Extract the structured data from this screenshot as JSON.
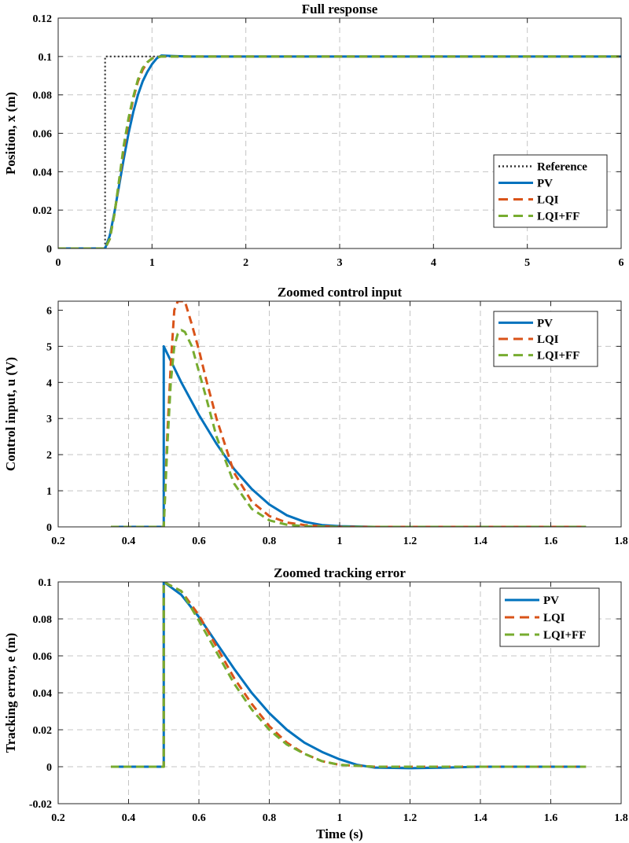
{
  "chart_data": [
    {
      "type": "line",
      "title": "Full response",
      "xlabel": "",
      "ylabel": "Position, x (m)",
      "xlim": [
        0,
        6
      ],
      "ylim": [
        0,
        0.12
      ],
      "xticks": [
        0,
        1,
        2,
        3,
        4,
        5,
        6
      ],
      "xtick_labels": [
        "0",
        "1",
        "2",
        "3",
        "4",
        "5",
        "6"
      ],
      "yticks": [
        0,
        0.02,
        0.04,
        0.06,
        0.08,
        0.1,
        0.12
      ],
      "ytick_labels": [
        "0",
        "0.02",
        "0.04",
        "0.06",
        "0.08",
        "0.1",
        "0.12"
      ],
      "grid": true,
      "legend": "right-middle",
      "series": [
        {
          "name": "Reference",
          "color": "#333333",
          "style": "dotted",
          "x": [
            0,
            0.5,
            0.5,
            6
          ],
          "y": [
            0,
            0,
            0.1,
            0.1
          ]
        },
        {
          "name": "PV",
          "color": "#0072BD",
          "style": "solid",
          "x": [
            0,
            0.5,
            0.55,
            0.6,
            0.65,
            0.7,
            0.75,
            0.8,
            0.85,
            0.9,
            0.95,
            1.0,
            1.05,
            1.1,
            1.2,
            1.4,
            6
          ],
          "y": [
            0,
            0,
            0.0067,
            0.019,
            0.033,
            0.047,
            0.06,
            0.071,
            0.08,
            0.087,
            0.092,
            0.096,
            0.099,
            0.1005,
            0.1003,
            0.1,
            0.1
          ]
        },
        {
          "name": "LQI",
          "color": "#D95319",
          "style": "dashed",
          "x": [
            0,
            0.5,
            0.55,
            0.6,
            0.65,
            0.7,
            0.75,
            0.8,
            0.85,
            0.9,
            0.95,
            1.0,
            1.1,
            1.2,
            6
          ],
          "y": [
            0,
            0,
            0.005,
            0.018,
            0.035,
            0.052,
            0.066,
            0.078,
            0.087,
            0.093,
            0.097,
            0.099,
            0.1,
            0.1,
            0.1
          ]
        },
        {
          "name": "LQI+FF",
          "color": "#77AC30",
          "style": "dashed",
          "x": [
            0,
            0.5,
            0.55,
            0.6,
            0.65,
            0.7,
            0.75,
            0.8,
            0.85,
            0.9,
            0.95,
            1.0,
            1.1,
            1.2,
            6
          ],
          "y": [
            0,
            0,
            0.005,
            0.018,
            0.036,
            0.054,
            0.068,
            0.079,
            0.088,
            0.094,
            0.097,
            0.099,
            0.1,
            0.1,
            0.1
          ]
        }
      ]
    },
    {
      "type": "line",
      "title": "Zoomed control input",
      "xlabel": "",
      "ylabel": "Control input, u (V)",
      "xlim": [
        0.2,
        1.8
      ],
      "ylim": [
        0,
        6.25
      ],
      "xticks": [
        0.2,
        0.4,
        0.6,
        0.8,
        1.0,
        1.2,
        1.4,
        1.6,
        1.8
      ],
      "xtick_labels": [
        "0.2",
        "0.4",
        "0.6",
        "0.8",
        "1",
        "1.2",
        "1.4",
        "1.6",
        "1.8"
      ],
      "yticks": [
        0,
        1,
        2,
        3,
        4,
        5,
        6
      ],
      "ytick_labels": [
        "0",
        "1",
        "2",
        "3",
        "4",
        "5",
        "6"
      ],
      "grid": true,
      "legend": "top-right",
      "series": [
        {
          "name": "PV",
          "color": "#0072BD",
          "style": "solid",
          "x": [
            0.35,
            0.5,
            0.5,
            0.55,
            0.6,
            0.65,
            0.7,
            0.75,
            0.8,
            0.85,
            0.9,
            0.95,
            1.0,
            1.1,
            1.7
          ],
          "y": [
            0,
            0,
            5.0,
            4.0,
            3.1,
            2.3,
            1.6,
            1.05,
            0.62,
            0.32,
            0.14,
            0.05,
            0.02,
            0,
            0
          ]
        },
        {
          "name": "LQI",
          "color": "#D95319",
          "style": "dashed",
          "x": [
            0.35,
            0.5,
            0.51,
            0.52,
            0.53,
            0.54,
            0.55,
            0.56,
            0.58,
            0.6,
            0.62,
            0.65,
            0.7,
            0.75,
            0.8,
            0.85,
            0.9,
            0.95,
            1.0,
            1.7
          ],
          "y": [
            0,
            0,
            2.5,
            4.5,
            6.0,
            6.25,
            6.25,
            6.25,
            5.6,
            4.9,
            4.1,
            3.0,
            1.5,
            0.7,
            0.3,
            0.12,
            0.05,
            0.02,
            0,
            0
          ]
        },
        {
          "name": "LQI+FF",
          "color": "#77AC30",
          "style": "dashed",
          "x": [
            0.35,
            0.5,
            0.51,
            0.52,
            0.53,
            0.54,
            0.55,
            0.56,
            0.58,
            0.6,
            0.62,
            0.65,
            0.7,
            0.75,
            0.8,
            0.85,
            0.9,
            0.95,
            1.0,
            1.7
          ],
          "y": [
            0,
            0,
            2.2,
            4.0,
            5.0,
            5.35,
            5.45,
            5.4,
            5.0,
            4.3,
            3.6,
            2.5,
            1.2,
            0.5,
            0.18,
            0.06,
            0.02,
            0.01,
            0,
            0
          ]
        }
      ]
    },
    {
      "type": "line",
      "title": "Zoomed tracking error",
      "xlabel": "Time (s)",
      "ylabel": "Tracking error, e (m)",
      "xlim": [
        0.2,
        1.8
      ],
      "ylim": [
        -0.02,
        0.1
      ],
      "xticks": [
        0.2,
        0.4,
        0.6,
        0.8,
        1.0,
        1.2,
        1.4,
        1.6,
        1.8
      ],
      "xtick_labels": [
        "0.2",
        "0.4",
        "0.6",
        "0.8",
        "1",
        "1.2",
        "1.4",
        "1.6",
        "1.8"
      ],
      "yticks": [
        -0.02,
        0,
        0.02,
        0.04,
        0.06,
        0.08,
        0.1
      ],
      "ytick_labels": [
        "-0.02",
        "0",
        "0.02",
        "0.04",
        "0.06",
        "0.08",
        "0.1"
      ],
      "grid": true,
      "legend": "top-right",
      "series": [
        {
          "name": "PV",
          "color": "#0072BD",
          "style": "solid",
          "x": [
            0.35,
            0.5,
            0.5,
            0.55,
            0.6,
            0.65,
            0.7,
            0.75,
            0.8,
            0.85,
            0.9,
            0.95,
            1.0,
            1.05,
            1.1,
            1.2,
            1.3,
            1.4,
            1.7
          ],
          "y": [
            0,
            0,
            0.1,
            0.093,
            0.081,
            0.067,
            0.053,
            0.04,
            0.029,
            0.02,
            0.013,
            0.008,
            0.004,
            0.001,
            -0.0005,
            -0.0008,
            -0.0005,
            0,
            0
          ]
        },
        {
          "name": "LQI",
          "color": "#D95319",
          "style": "dashed",
          "x": [
            0.35,
            0.5,
            0.5,
            0.55,
            0.6,
            0.65,
            0.7,
            0.75,
            0.8,
            0.85,
            0.9,
            0.95,
            1.0,
            1.1,
            1.2,
            1.7
          ],
          "y": [
            0,
            0,
            0.1,
            0.095,
            0.082,
            0.065,
            0.048,
            0.034,
            0.022,
            0.013,
            0.007,
            0.003,
            0.001,
            0,
            0,
            0
          ]
        },
        {
          "name": "LQI+FF",
          "color": "#77AC30",
          "style": "dashed",
          "x": [
            0.35,
            0.5,
            0.5,
            0.55,
            0.6,
            0.65,
            0.7,
            0.75,
            0.8,
            0.85,
            0.9,
            0.95,
            1.0,
            1.1,
            1.2,
            1.7
          ],
          "y": [
            0,
            0,
            0.1,
            0.095,
            0.079,
            0.062,
            0.045,
            0.031,
            0.02,
            0.012,
            0.007,
            0.003,
            0.001,
            0,
            0,
            0
          ]
        }
      ]
    }
  ]
}
